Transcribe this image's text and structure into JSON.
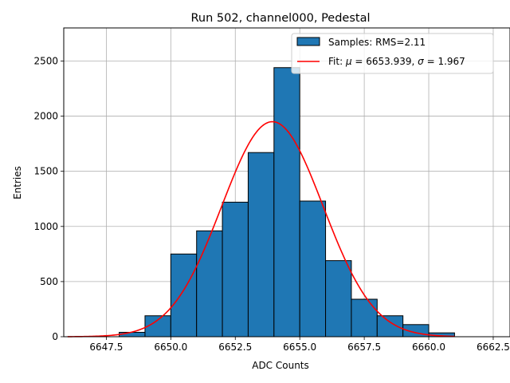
{
  "chart_data": {
    "type": "bar",
    "title": "Run 502, channel000, Pedestal",
    "xlabel": "ADC Counts",
    "ylabel": "Entries",
    "xlim": [
      6645.85,
      6663.15
    ],
    "ylim": [
      0,
      2800
    ],
    "grid": true,
    "legend_position": "upper-right",
    "x_ticks": [
      6647.5,
      6650.0,
      6652.5,
      6655.0,
      6657.5,
      6660.0,
      6662.5
    ],
    "x_tick_labels": [
      "6647.5",
      "6650.0",
      "6652.5",
      "6655.0",
      "6657.5",
      "6660.0",
      "6662.5"
    ],
    "y_ticks": [
      0,
      500,
      1000,
      1500,
      2000,
      2500
    ],
    "y_tick_labels": [
      "0",
      "500",
      "1000",
      "1500",
      "2000",
      "2500"
    ],
    "bin_edges": [
      6648,
      6649,
      6650,
      6651,
      6652,
      6653,
      6654,
      6655,
      6656,
      6657,
      6658,
      6659,
      6660,
      6661
    ],
    "series": [
      {
        "kind": "histogram",
        "name": "Samples: RMS=2.11",
        "color": "#1f77b4",
        "edgecolor": "#000000",
        "values": [
          40,
          190,
          750,
          960,
          1220,
          1670,
          2440,
          1230,
          690,
          340,
          190,
          110,
          35
        ]
      },
      {
        "kind": "fit-line",
        "name_prefix": "Fit: ",
        "name_mu_symbol": "μ",
        "name_mu_value": " = 6653.939, ",
        "name_sigma_symbol": "σ",
        "name_sigma_value": " = 1.967",
        "color": "#ff0000",
        "mu": 6653.939,
        "sigma": 1.967,
        "amplitude": 1950,
        "x_range": [
          6646,
          6661
        ]
      }
    ]
  }
}
